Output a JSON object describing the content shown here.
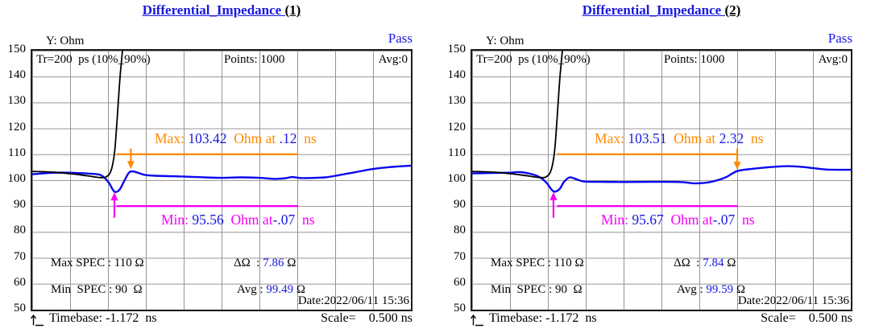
{
  "colors": {
    "accent_blue": "#1818e0",
    "curve_blue": "#0808f0",
    "orange": "#ff8a00",
    "magenta": "#f600f6",
    "border_dark": "#1c1c1c",
    "grid_gray": "#949494"
  },
  "charts": [
    {
      "title_main": "Differential_Impedance ",
      "title_index": "(1)",
      "pass": "Pass",
      "y_axis_title": "Y: Ohm",
      "y_ticks": [
        "150",
        "140",
        "130",
        "120",
        "110",
        "100",
        "90",
        "80",
        "70",
        "60",
        "50"
      ],
      "header": {
        "tr": "Tr=200  ps (10%_90%)",
        "points": "Points: 1000",
        "avg": "Avg:0"
      },
      "max_anno": {
        "label": "Max: ",
        "value": "103.42",
        "mid": "  Ohm at ",
        "time": ".12",
        "unit": "  ns"
      },
      "min_anno": {
        "label": "Min: ",
        "value": "95.56",
        "mid": "  Ohm at",
        "time": "-.07",
        "unit": "  ns"
      },
      "spec_row1": {
        "left": "Max SPEC : 110 Ω",
        "delta_prefix": "ΔΩ  : ",
        "delta_value": "7.86",
        "delta_suffix": " Ω"
      },
      "spec_row2": {
        "left": "Min  SPEC : 90  Ω",
        "avg_prefix": "Avg : ",
        "avg_value": "99.49",
        "avg_suffix": " Ω"
      },
      "date": "Date:2022/06/11 15:36",
      "timebase": "Timebase: -1.172  ns",
      "scale": "Scale=    0.500 ns"
    },
    {
      "title_main": "Differential_Impedance ",
      "title_index": "(2)",
      "pass": "Pass",
      "y_axis_title": "Y: Ohm",
      "y_ticks": [
        "150",
        "140",
        "130",
        "120",
        "110",
        "100",
        "90",
        "80",
        "70",
        "60",
        "50"
      ],
      "header": {
        "tr": "Tr=200  ps (10%_90%)",
        "points": "Points: 1000",
        "avg": "Avg:0"
      },
      "max_anno": {
        "label": "Max: ",
        "value": "103.51",
        "mid": "  Ohm at ",
        "time": "2.32",
        "unit": "  ns"
      },
      "min_anno": {
        "label": "Min: ",
        "value": "95.67",
        "mid": "  Ohm at",
        "time": "-.07",
        "unit": "  ns"
      },
      "spec_row1": {
        "left": "Max SPEC : 110 Ω",
        "delta_prefix": "ΔΩ  : ",
        "delta_value": "7.84",
        "delta_suffix": " Ω"
      },
      "spec_row2": {
        "left": "Min  SPEC : 90  Ω",
        "avg_prefix": "Avg : ",
        "avg_value": "99.59",
        "avg_suffix": " Ω"
      },
      "date": "Date:2022/06/11 15:36",
      "timebase": "Timebase: -1.172  ns",
      "scale": "Scale=    0.500 ns"
    }
  ],
  "chart_data": [
    {
      "type": "line",
      "title": "Differential_Impedance (1)",
      "result": "Pass",
      "ylabel": "Ohm",
      "ylim": [
        50,
        150
      ],
      "y_tick_step": 10,
      "x_unit": "ns",
      "x_range": [
        -1.172,
        3.828
      ],
      "x_scale_per_div": 0.5,
      "grid": true,
      "stats": {
        "max_ohm": 103.42,
        "max_at_ns": 0.12,
        "min_ohm": 95.56,
        "min_at_ns": -0.07,
        "delta_ohm": 7.86,
        "avg_ohm": 99.49,
        "max_spec_ohm": 110,
        "min_spec_ohm": 90,
        "points": 1000,
        "averaging": 0,
        "rise_time_ps": 200
      },
      "series": [
        {
          "name": "impedance",
          "color": "blue",
          "points": [
            [
              -1.172,
              102.3
            ],
            [
              -0.85,
              102.9
            ],
            [
              -0.53,
              102.7
            ],
            [
              -0.32,
              102.3
            ],
            [
              -0.24,
              101.5
            ],
            [
              -0.16,
              99.0
            ],
            [
              -0.087,
              95.56
            ],
            [
              -0.02,
              96.3
            ],
            [
              0.04,
              99.5
            ],
            [
              0.1,
              102.7
            ],
            [
              0.147,
              103.42
            ],
            [
              0.22,
              102.9
            ],
            [
              0.32,
              102.0
            ],
            [
              0.45,
              101.7
            ],
            [
              0.72,
              101.5
            ],
            [
              1.01,
              101.2
            ],
            [
              1.3,
              100.9
            ],
            [
              1.57,
              101.1
            ],
            [
              1.83,
              100.9
            ],
            [
              2.02,
              100.5
            ],
            [
              2.16,
              100.7
            ],
            [
              2.26,
              101.2
            ],
            [
              2.38,
              100.8
            ],
            [
              2.55,
              100.9
            ],
            [
              2.7,
              101.1
            ],
            [
              2.87,
              101.9
            ],
            [
              3.08,
              103.0
            ],
            [
              3.32,
              104.3
            ],
            [
              3.53,
              105.0
            ],
            [
              3.72,
              105.4
            ],
            [
              3.828,
              105.6
            ]
          ]
        },
        {
          "name": "step-edge",
          "color": "black",
          "points": [
            [
              -1.172,
              103.4
            ],
            [
              -0.85,
              103.0
            ],
            [
              -0.55,
              102.1
            ],
            [
              -0.38,
              101.4
            ],
            [
              -0.27,
              101.0
            ],
            [
              -0.21,
              101.1
            ],
            [
              -0.17,
              101.8
            ],
            [
              -0.14,
              103.0
            ],
            [
              -0.11,
              106.0
            ],
            [
              -0.08,
              112.0
            ],
            [
              -0.05,
              124.0
            ],
            [
              -0.02,
              137.0
            ],
            [
              0.0,
              144.0
            ],
            [
              0.02,
              150.0
            ]
          ]
        }
      ],
      "markers": {
        "max_marker": {
          "line_ohm": 110,
          "x1_ns": -0.06,
          "x2_ns": 2.34,
          "arrow_ns": 0.13,
          "arrow_tip_ohm": 104.3,
          "arrow_dir": "down"
        },
        "min_marker": {
          "line_ohm": 90,
          "x1_ns": -0.06,
          "x2_ns": 2.34,
          "arrow_ns": -0.087,
          "arrow_tip_ohm": 95.3,
          "arrow_tail_ohm": 85.5,
          "arrow_dir": "up"
        }
      }
    },
    {
      "type": "line",
      "title": "Differential_Impedance (2)",
      "result": "Pass",
      "ylabel": "Ohm",
      "ylim": [
        50,
        150
      ],
      "y_tick_step": 10,
      "x_unit": "ns",
      "x_range": [
        -1.172,
        3.828
      ],
      "x_scale_per_div": 0.5,
      "grid": true,
      "stats": {
        "max_ohm": 103.51,
        "max_at_ns": 2.32,
        "min_ohm": 95.67,
        "min_at_ns": -0.07,
        "delta_ohm": 7.84,
        "avg_ohm": 99.59,
        "max_spec_ohm": 110,
        "min_spec_ohm": 90,
        "points": 1000,
        "averaging": 0,
        "rise_time_ps": 200
      },
      "series": [
        {
          "name": "impedance",
          "color": "blue",
          "points": [
            [
              -1.172,
              102.6
            ],
            [
              -0.91,
              102.8
            ],
            [
              -0.69,
              102.9
            ],
            [
              -0.53,
              103.1
            ],
            [
              -0.37,
              102.2
            ],
            [
              -0.27,
              101.0
            ],
            [
              -0.19,
              99.0
            ],
            [
              -0.098,
              95.67
            ],
            [
              -0.02,
              96.5
            ],
            [
              0.04,
              99.3
            ],
            [
              0.115,
              101.1
            ],
            [
              0.2,
              100.4
            ],
            [
              0.3,
              99.5
            ],
            [
              0.51,
              99.35
            ],
            [
              0.85,
              99.3
            ],
            [
              1.22,
              99.35
            ],
            [
              1.57,
              99.3
            ],
            [
              1.75,
              98.8
            ],
            [
              1.91,
              99.0
            ],
            [
              2.07,
              100.0
            ],
            [
              2.19,
              101.3
            ],
            [
              2.328,
              103.51
            ],
            [
              2.5,
              104.3
            ],
            [
              2.71,
              104.9
            ],
            [
              2.99,
              105.4
            ],
            [
              3.19,
              105.1
            ],
            [
              3.35,
              104.6
            ],
            [
              3.52,
              104.1
            ],
            [
              3.828,
              104.0
            ]
          ]
        },
        {
          "name": "step-edge",
          "color": "black",
          "points": [
            [
              -1.172,
              103.4
            ],
            [
              -0.85,
              103.0
            ],
            [
              -0.55,
              102.1
            ],
            [
              -0.38,
              101.4
            ],
            [
              -0.27,
              101.0
            ],
            [
              -0.21,
              101.1
            ],
            [
              -0.17,
              101.8
            ],
            [
              -0.14,
              103.0
            ],
            [
              -0.11,
              106.0
            ],
            [
              -0.08,
              112.0
            ],
            [
              -0.05,
              124.0
            ],
            [
              -0.02,
              137.0
            ],
            [
              0.0,
              144.0
            ],
            [
              0.02,
              150.0
            ]
          ]
        }
      ],
      "markers": {
        "max_marker": {
          "line_ohm": 110,
          "x1_ns": -0.05,
          "x2_ns": 2.33,
          "arrow_ns": 2.328,
          "arrow_tip_ohm": 104.0,
          "arrow_dir": "down"
        },
        "min_marker": {
          "line_ohm": 90,
          "x1_ns": -0.05,
          "x2_ns": 2.33,
          "arrow_ns": -0.098,
          "arrow_tip_ohm": 95.4,
          "arrow_tail_ohm": 85.5,
          "arrow_dir": "up"
        }
      }
    }
  ]
}
